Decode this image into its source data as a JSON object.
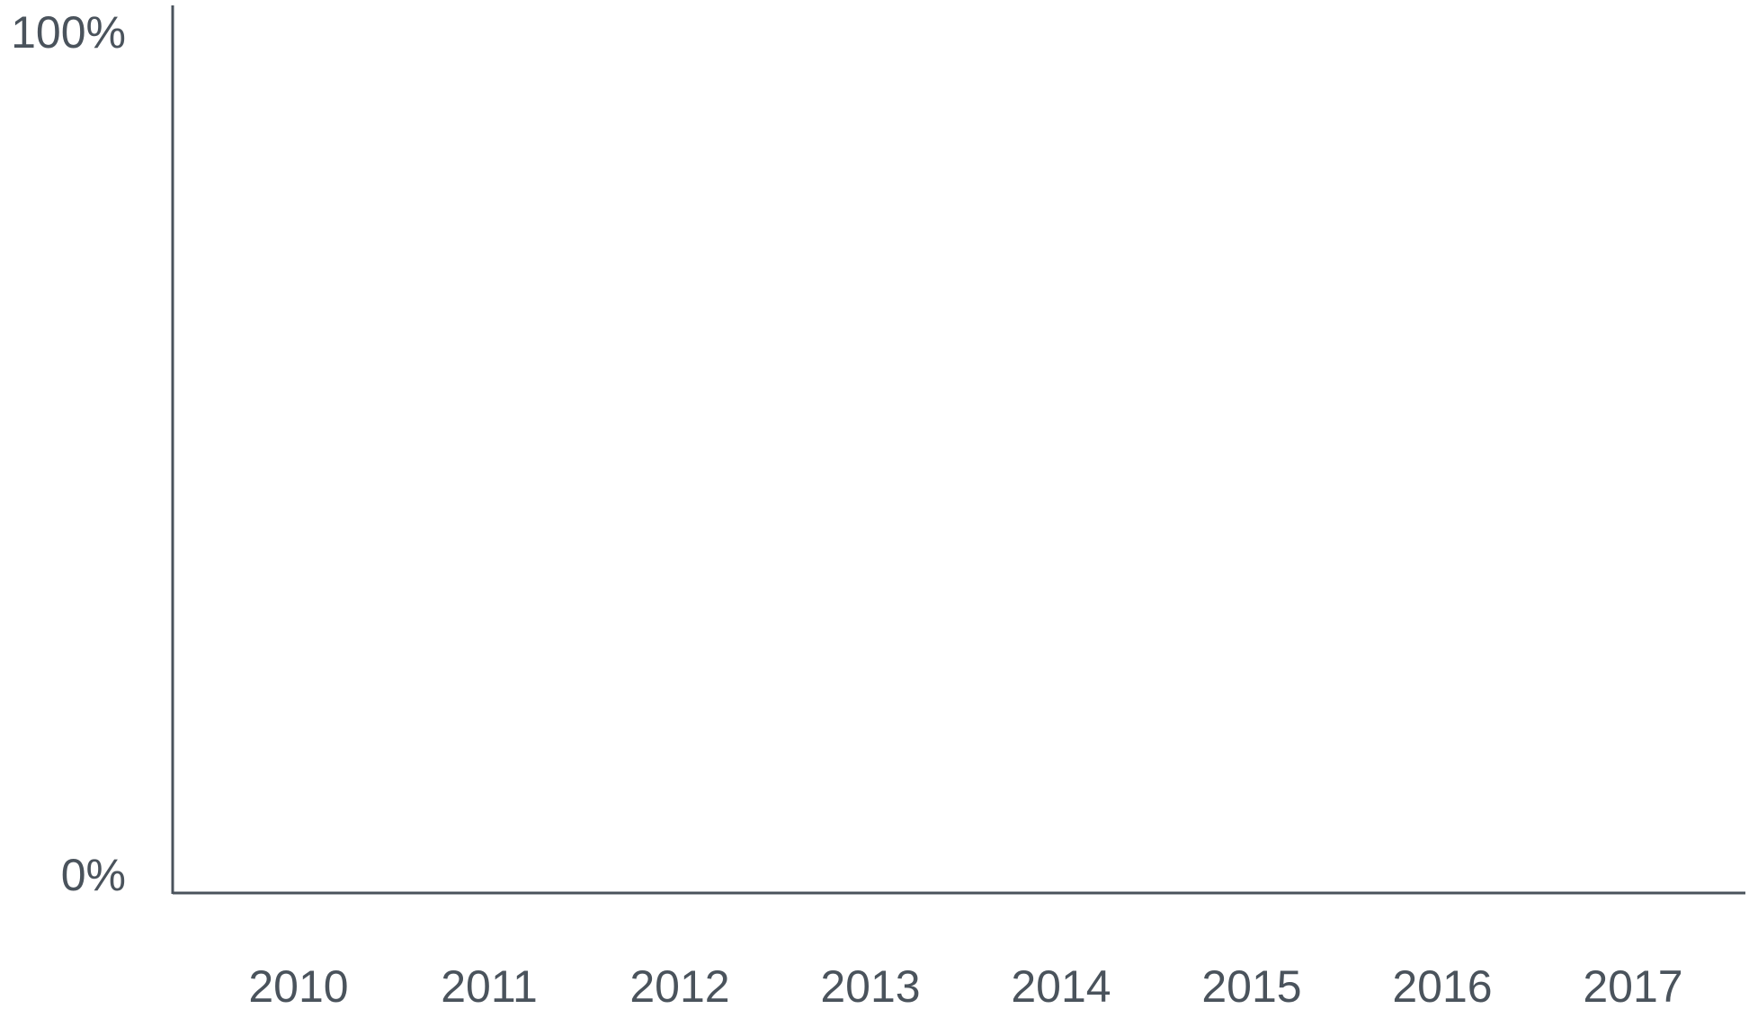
{
  "chart_data": {
    "type": "bar",
    "categories": [
      "2010",
      "2011",
      "2012",
      "2013",
      "2014",
      "2015",
      "2016",
      "2017"
    ],
    "ylim": [
      0,
      100
    ],
    "yticks": [
      {
        "value": 0,
        "label": "0%"
      },
      {
        "value": 100,
        "label": "100%"
      }
    ],
    "grid": false
  }
}
